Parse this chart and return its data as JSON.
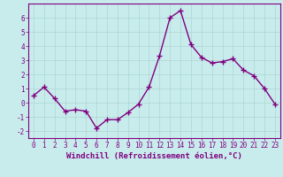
{
  "x": [
    0,
    1,
    2,
    3,
    4,
    5,
    6,
    7,
    8,
    9,
    10,
    11,
    12,
    13,
    14,
    15,
    16,
    17,
    18,
    19,
    20,
    21,
    22,
    23
  ],
  "y": [
    0.5,
    1.1,
    0.3,
    -0.6,
    -0.5,
    -0.6,
    -1.8,
    -1.2,
    -1.2,
    -0.7,
    -0.1,
    1.1,
    3.3,
    6.0,
    6.5,
    4.1,
    3.2,
    2.8,
    2.9,
    3.1,
    2.3,
    1.9,
    1.0,
    -0.1
  ],
  "line_color": "#800080",
  "marker": "+",
  "marker_size": 5,
  "linewidth": 1.0,
  "xlabel": "Windchill (Refroidissement éolien,°C)",
  "xlim": [
    -0.5,
    23.5
  ],
  "ylim": [
    -2.5,
    7.0
  ],
  "yticks": [
    -2,
    -1,
    0,
    1,
    2,
    3,
    4,
    5,
    6
  ],
  "xticks": [
    0,
    1,
    2,
    3,
    4,
    5,
    6,
    7,
    8,
    9,
    10,
    11,
    12,
    13,
    14,
    15,
    16,
    17,
    18,
    19,
    20,
    21,
    22,
    23
  ],
  "background_color": "#c8ecec",
  "grid_color": "#aed4d4",
  "tick_color": "#800080",
  "label_color": "#800080",
  "spine_color": "#800080",
  "xlabel_fontsize": 6.5,
  "tick_fontsize": 5.5
}
